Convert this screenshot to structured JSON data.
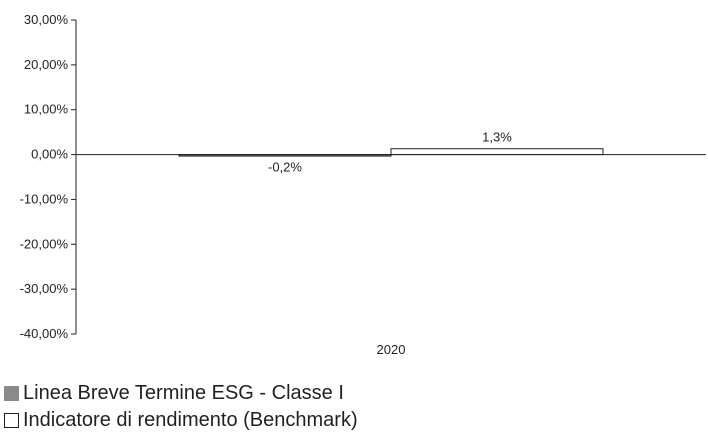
{
  "chart_data": {
    "type": "bar",
    "categories": [
      "2020"
    ],
    "series": [
      {
        "name": "Linea Breve Termine ESG - Classe I",
        "values": [
          -0.2
        ],
        "value_labels": [
          "-0,2%"
        ],
        "color": "#8a8a8a"
      },
      {
        "name": "Indicatore di rendimento (Benchmark)",
        "values": [
          1.3
        ],
        "value_labels": [
          "1,3%"
        ],
        "color": "#ffffff"
      }
    ],
    "yticks": [
      30,
      20,
      10,
      0,
      -10,
      -20,
      -30,
      -40
    ],
    "ytick_labels": [
      "30,00%",
      "20,00%",
      "10,00%",
      "0,00%",
      "-10,00%",
      "-20,00%",
      "-30,00%",
      "-40,00%"
    ],
    "ylim": [
      -40,
      30
    ],
    "grid": false,
    "legend_position": "bottom-left"
  }
}
